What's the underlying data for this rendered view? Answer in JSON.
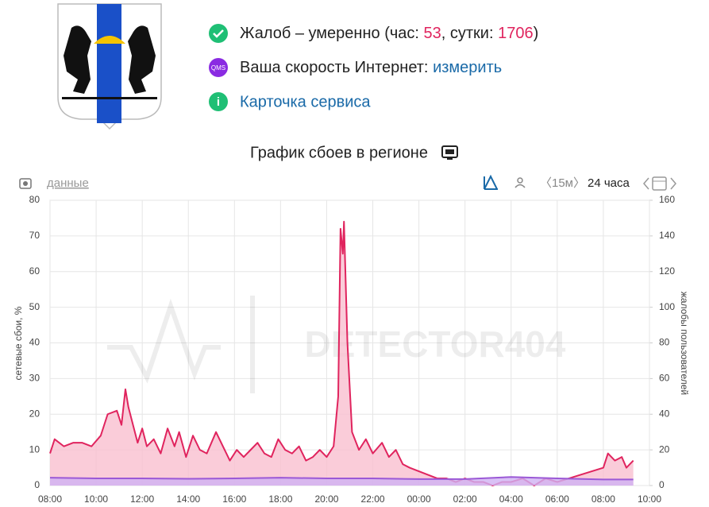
{
  "header": {
    "complaints": {
      "text": "Жалоб – умеренно (час:",
      "hour": "53",
      "mid": ", сутки:",
      "day": "1706",
      "end": ")"
    },
    "speed": {
      "badge": "QMS",
      "text": "Ваша скорость Интернет:",
      "link": "измерить"
    },
    "service": "Карточка сервиса"
  },
  "chart_heading": "График сбоев в регионе",
  "toolbar": {
    "data": "данные",
    "interval": "〈15м〉",
    "period": "24 часа"
  },
  "watermark": "DETECTOR404",
  "chart_data": {
    "type": "area",
    "ylabel": "сетевые сбои, %",
    "y2label": "жалобы пользователей",
    "xlim": [
      0,
      26
    ],
    "xticks": [
      {
        "value": 0,
        "label": "08:00"
      },
      {
        "value": 2,
        "label": "10:00"
      },
      {
        "value": 4,
        "label": "12:00"
      },
      {
        "value": 6,
        "label": "14:00"
      },
      {
        "value": 8,
        "label": "16:00"
      },
      {
        "value": 10,
        "label": "18:00"
      },
      {
        "value": 12,
        "label": "20:00"
      },
      {
        "value": 14,
        "label": "22:00"
      },
      {
        "value": 16,
        "label": "00:00"
      },
      {
        "value": 18,
        "label": "02:00"
      },
      {
        "value": 20,
        "label": "04:00"
      },
      {
        "value": 22,
        "label": "06:00"
      },
      {
        "value": 24,
        "label": "08:00"
      },
      {
        "value": 26,
        "label": "10:00"
      }
    ],
    "ylim": [
      0,
      80
    ],
    "yticks": [
      0,
      10,
      20,
      30,
      40,
      50,
      60,
      70,
      80
    ],
    "y2lim": [
      0,
      160
    ],
    "y2ticks": [
      0,
      20,
      40,
      60,
      80,
      100,
      120,
      140,
      160
    ],
    "grid": true,
    "series": [
      {
        "color": "#e0245e",
        "fill": "#f9bfd0",
        "axis": "y2",
        "x": [
          0,
          0.2,
          0.6,
          1,
          1.4,
          1.8,
          2.2,
          2.5,
          2.9,
          3.1,
          3.27,
          3.4,
          3.6,
          3.8,
          4,
          4.2,
          4.5,
          4.8,
          5.1,
          5.4,
          5.6,
          5.9,
          6.2,
          6.5,
          6.8,
          7.2,
          7.5,
          7.8,
          8.1,
          8.4,
          8.7,
          9,
          9.3,
          9.6,
          9.9,
          10.2,
          10.5,
          10.8,
          11.1,
          11.4,
          11.7,
          12,
          12.3,
          12.5,
          12.6,
          12.7,
          12.75,
          12.9,
          13.1,
          13.4,
          13.7,
          14,
          14.4,
          14.7,
          15,
          15.3,
          15.6,
          16,
          16.4,
          16.8,
          17.2,
          17.6,
          18,
          18.4,
          18.8,
          19.2,
          19.6,
          20,
          20.5,
          21,
          21.5,
          22,
          22.5,
          23,
          23.5,
          24,
          24.2,
          24.5,
          24.8,
          25,
          25.3
        ],
        "values": [
          18,
          26,
          22,
          24,
          24,
          22,
          28,
          40,
          42,
          34,
          54,
          44,
          34,
          24,
          32,
          22,
          26,
          18,
          32,
          22,
          30,
          16,
          28,
          20,
          18,
          30,
          22,
          14,
          20,
          16,
          20,
          24,
          18,
          16,
          26,
          20,
          18,
          22,
          14,
          16,
          20,
          16,
          22,
          50,
          144,
          130,
          148,
          80,
          30,
          20,
          26,
          18,
          24,
          16,
          20,
          12,
          10,
          8,
          6,
          4,
          4,
          2,
          4,
          2,
          2,
          0,
          2,
          2,
          4,
          0,
          4,
          2,
          4,
          6,
          8,
          10,
          18,
          14,
          16,
          10,
          14
        ]
      },
      {
        "color": "#9b59d6",
        "fill": "#cfb1f2",
        "x": [
          0,
          2,
          4,
          6,
          8,
          10,
          12,
          14,
          16,
          18,
          20,
          22,
          24,
          25.3
        ],
        "values": [
          2.2,
          2,
          2,
          1.9,
          2,
          2.2,
          2,
          2,
          1.8,
          1.8,
          2.4,
          2,
          1.7,
          1.7
        ]
      }
    ]
  }
}
